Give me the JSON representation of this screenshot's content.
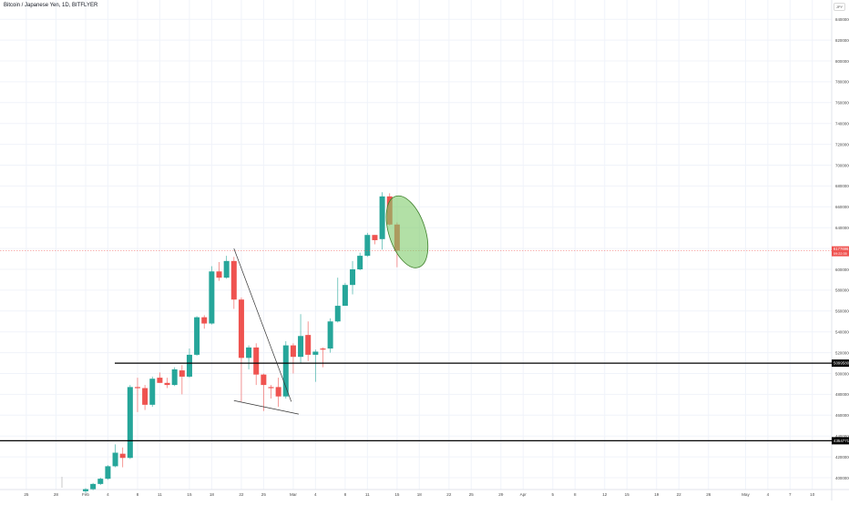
{
  "title": "Bitcoin / Japanese Yen, 1D, BITFLYER",
  "currency_badge": "JPY",
  "chart_data": {
    "type": "candlestick",
    "price_axis": {
      "ticks": [
        4000000,
        4200000,
        4400000,
        4600000,
        4800000,
        5000000,
        5200000,
        5400000,
        5600000,
        5800000,
        6000000,
        6200000,
        6400000,
        6600000,
        6800000,
        7000000,
        7200000,
        7400000,
        7600000,
        7800000,
        8000000,
        8200000,
        8400000
      ],
      "tick_labels": [
        "4000000",
        "4200000",
        "4400000",
        "4600000",
        "4800000",
        "5000000",
        "5200000",
        "5400000",
        "5600000",
        "5800000",
        "6000000",
        "6200000",
        "6400000",
        "6600000",
        "6800000",
        "7000000",
        "7200000",
        "7400000",
        "7600000",
        "7800000",
        "8000000",
        "8200000",
        "8400000"
      ]
    },
    "time_axis": {
      "labels": [
        {
          "day": -12,
          "text": "21"
        },
        {
          "day": -8,
          "text": "25"
        },
        {
          "day": -4,
          "text": "28"
        },
        {
          "day": 0,
          "text": "Feb"
        },
        {
          "day": 3,
          "text": "4"
        },
        {
          "day": 7,
          "text": "8"
        },
        {
          "day": 10,
          "text": "11"
        },
        {
          "day": 14,
          "text": "15"
        },
        {
          "day": 17,
          "text": "18"
        },
        {
          "day": 21,
          "text": "22"
        },
        {
          "day": 24,
          "text": "25"
        },
        {
          "day": 28,
          "text": "Mar"
        },
        {
          "day": 31,
          "text": "4"
        },
        {
          "day": 35,
          "text": "8"
        },
        {
          "day": 38,
          "text": "11"
        },
        {
          "day": 42,
          "text": "15"
        },
        {
          "day": 45,
          "text": "18"
        },
        {
          "day": 49,
          "text": "22"
        },
        {
          "day": 52,
          "text": "25"
        },
        {
          "day": 56,
          "text": "29"
        },
        {
          "day": 59,
          "text": "Apr"
        },
        {
          "day": 63,
          "text": "5"
        },
        {
          "day": 66,
          "text": "8"
        },
        {
          "day": 70,
          "text": "12"
        },
        {
          "day": 73,
          "text": "15"
        },
        {
          "day": 77,
          "text": "19"
        },
        {
          "day": 80,
          "text": "22"
        },
        {
          "day": 84,
          "text": "26"
        },
        {
          "day": 89,
          "text": "May"
        },
        {
          "day": 92,
          "text": "4"
        },
        {
          "day": 95,
          "text": "7"
        },
        {
          "day": 98,
          "text": "10"
        }
      ]
    },
    "candles": [
      {
        "date": "Feb 1",
        "open": 3870000,
        "high": 3900000,
        "low": 3850000,
        "close": 3890000
      },
      {
        "date": "Feb 2",
        "open": 3890000,
        "high": 3950000,
        "low": 3880000,
        "close": 3940000
      },
      {
        "date": "Feb 3",
        "open": 3940000,
        "high": 4000000,
        "low": 3930000,
        "close": 3990000
      },
      {
        "date": "Feb 4",
        "open": 3990000,
        "high": 4120000,
        "low": 3980000,
        "close": 4110000
      },
      {
        "date": "Feb 5",
        "open": 4110000,
        "high": 4320000,
        "low": 4100000,
        "close": 4240000
      },
      {
        "date": "Feb 6",
        "open": 4230000,
        "high": 4290000,
        "low": 4100000,
        "close": 4190000
      },
      {
        "date": "Feb 7",
        "open": 4190000,
        "high": 4890000,
        "low": 4180000,
        "close": 4870000
      },
      {
        "date": "Feb 8",
        "open": 4870000,
        "high": 4960000,
        "low": 4630000,
        "close": 4860000
      },
      {
        "date": "Feb 9",
        "open": 4860000,
        "high": 4890000,
        "low": 4650000,
        "close": 4700000
      },
      {
        "date": "Feb 10",
        "open": 4700000,
        "high": 4970000,
        "low": 4680000,
        "close": 4950000
      },
      {
        "date": "Feb 11",
        "open": 4960000,
        "high": 5010000,
        "low": 4910000,
        "close": 4910000
      },
      {
        "date": "Feb 12",
        "open": 4910000,
        "high": 4960000,
        "low": 4860000,
        "close": 4890000
      },
      {
        "date": "Feb 13",
        "open": 4890000,
        "high": 5060000,
        "low": 4880000,
        "close": 5040000
      },
      {
        "date": "Feb 14",
        "open": 5030000,
        "high": 5080000,
        "low": 4800000,
        "close": 4970000
      },
      {
        "date": "Feb 15",
        "open": 4970000,
        "high": 5240000,
        "low": 4960000,
        "close": 5180000
      },
      {
        "date": "Feb 16",
        "open": 5180000,
        "high": 5550000,
        "low": 5170000,
        "close": 5540000
      },
      {
        "date": "Feb 17",
        "open": 5540000,
        "high": 5560000,
        "low": 5430000,
        "close": 5480000
      },
      {
        "date": "Feb 18",
        "open": 5480000,
        "high": 6030000,
        "low": 5470000,
        "close": 5980000
      },
      {
        "date": "Feb 19",
        "open": 5980000,
        "high": 6070000,
        "low": 5890000,
        "close": 5920000
      },
      {
        "date": "Feb 20",
        "open": 5920000,
        "high": 6130000,
        "low": 5910000,
        "close": 6080000
      },
      {
        "date": "Feb 21",
        "open": 6080000,
        "high": 6120000,
        "low": 5620000,
        "close": 5710000
      },
      {
        "date": "Feb 22",
        "open": 5710000,
        "high": 5730000,
        "low": 4730000,
        "close": 5150000
      },
      {
        "date": "Feb 23",
        "open": 5150000,
        "high": 5270000,
        "low": 5040000,
        "close": 5250000
      },
      {
        "date": "Feb 24",
        "open": 5250000,
        "high": 5290000,
        "low": 4890000,
        "close": 4990000
      },
      {
        "date": "Feb 25",
        "open": 4990000,
        "high": 5000000,
        "low": 4640000,
        "close": 4890000
      },
      {
        "date": "Feb 26",
        "open": 4870000,
        "high": 4890000,
        "low": 4760000,
        "close": 4860000
      },
      {
        "date": "Feb 27",
        "open": 4870000,
        "high": 4960000,
        "low": 4680000,
        "close": 4780000
      },
      {
        "date": "Feb 28",
        "open": 4780000,
        "high": 5310000,
        "low": 4760000,
        "close": 5270000
      },
      {
        "date": "Mar 1",
        "open": 5270000,
        "high": 5290000,
        "low": 5000000,
        "close": 5160000
      },
      {
        "date": "Mar 2",
        "open": 5160000,
        "high": 5570000,
        "low": 5100000,
        "close": 5360000
      },
      {
        "date": "Mar 3",
        "open": 5370000,
        "high": 5500000,
        "low": 5120000,
        "close": 5180000
      },
      {
        "date": "Mar 4",
        "open": 5180000,
        "high": 5230000,
        "low": 4920000,
        "close": 5210000
      },
      {
        "date": "Mar 5",
        "open": 5240000,
        "high": 5250000,
        "low": 5060000,
        "close": 5230000
      },
      {
        "date": "Mar 6",
        "open": 5240000,
        "high": 5530000,
        "low": 5200000,
        "close": 5500000
      },
      {
        "date": "Mar 7",
        "open": 5500000,
        "high": 5920000,
        "low": 5490000,
        "close": 5650000
      },
      {
        "date": "Mar 8",
        "open": 5650000,
        "high": 5870000,
        "low": 5650000,
        "close": 5850000
      },
      {
        "date": "Mar 9",
        "open": 5850000,
        "high": 6080000,
        "low": 5760000,
        "close": 6000000
      },
      {
        "date": "Mar 10",
        "open": 6000000,
        "high": 6160000,
        "low": 5990000,
        "close": 6130000
      },
      {
        "date": "Mar 11",
        "open": 6130000,
        "high": 6350000,
        "low": 6120000,
        "close": 6330000
      },
      {
        "date": "Mar 12",
        "open": 6330000,
        "high": 6330000,
        "low": 6240000,
        "close": 6280000
      },
      {
        "date": "Mar 13",
        "open": 6290000,
        "high": 6740000,
        "low": 6190000,
        "close": 6700000
      },
      {
        "date": "Mar 14",
        "open": 6700000,
        "high": 6730000,
        "low": 6420000,
        "close": 6430000
      },
      {
        "date": "Mar 15",
        "open": 6430000,
        "high": 6450000,
        "low": 6020000,
        "close": 6180000
      }
    ],
    "levels": [
      {
        "value": 5099580,
        "label": "5099580"
      },
      {
        "value": 4354771,
        "label": "4354771"
      }
    ],
    "current_price": {
      "value": 6177696,
      "label": "6177696",
      "sublabel": "09:22:35"
    },
    "trendlines": [
      {
        "from": {
          "date": "Feb 21",
          "value": 6200000
        },
        "to": {
          "date": "Feb 28",
          "value": 4730000
        }
      },
      {
        "from": {
          "date": "Feb 21",
          "value": 4740000
        },
        "to": {
          "date": "Mar 1",
          "value": 4610000
        }
      }
    ],
    "ellipse_highlight": {
      "center_date": "Mar 15",
      "center_value": 6360000
    },
    "colors": {
      "up": "#26a69a",
      "down": "#ef5350",
      "grid": "#f0f3fa",
      "axis_text": "#4a4a4a",
      "level_line": "#000000",
      "current_price_line": "#ef5350",
      "ellipse_fill": "#7fcc6b",
      "ellipse_stroke": "#3d7f2a"
    }
  }
}
